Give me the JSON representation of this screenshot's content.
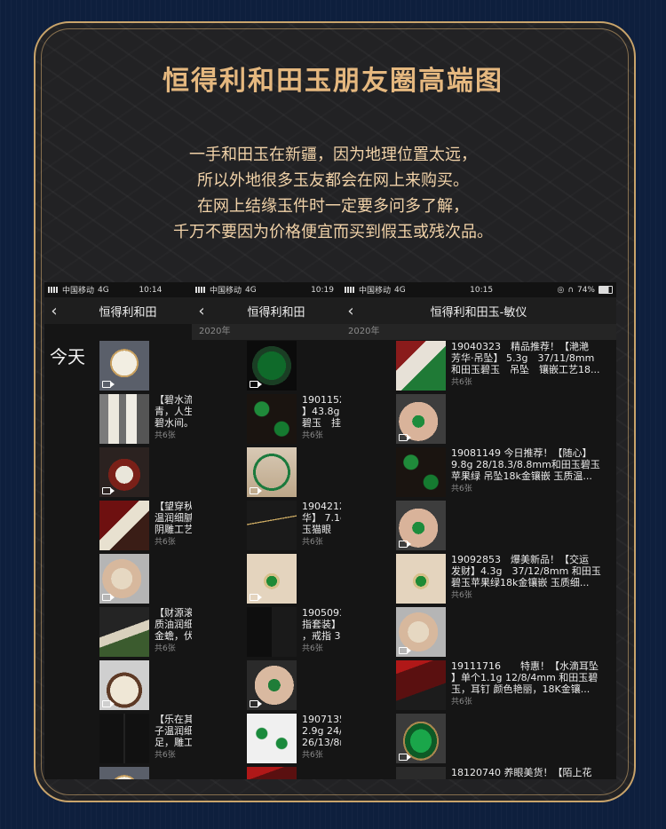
{
  "title": "恒得利和田玉朋友圈高端图",
  "intro": [
    "一手和田玉在新疆，因为地理位置太远，",
    "所以外地很多玉友都会在网上来购买。",
    "在网上结缘玉件时一定要多问多了解，",
    "千万不要因为价格便宜而买到假玉或残次品。"
  ],
  "phones": [
    {
      "carrier": "中国移动",
      "network": "4G",
      "time": "10:14",
      "nav_title": "恒得利和田",
      "today": "今天",
      "posts": [
        {
          "lines": [
            "【碧水流",
            "青，人生",
            "碧水间。"
          ],
          "count": "共6张"
        },
        {
          "lines": [
            "【望穿秋",
            "温润细腻",
            "阴雕工艺"
          ],
          "count": "共6张"
        },
        {
          "lines": [
            "【财源滚",
            "质油润细",
            "金蟾，伏"
          ],
          "count": "共6张"
        },
        {
          "lines": [
            "【乐在其",
            "子温润细",
            "足，雕工"
          ],
          "count": "共6张"
        }
      ]
    },
    {
      "carrier": "中国移动",
      "network": "4G",
      "time": "10:19",
      "nav_title": "恒得利和田",
      "year": "2020年",
      "posts": [
        {
          "lines": [
            "19011529",
            "】43.8g",
            "碧玉　挂"
          ],
          "count": "共6张"
        },
        {
          "lines": [
            "1904212",
            "华】 7.1g",
            "玉猫眼"
          ],
          "count": "共6张"
        },
        {
          "lines": [
            "1905093",
            "指套装】",
            "，戒指 3"
          ],
          "count": "共6张"
        },
        {
          "lines": [
            "1907135",
            "2.9g 24/",
            "26/13/8m"
          ],
          "count": "共6张"
        }
      ]
    },
    {
      "carrier": "中国移动",
      "network": "4G",
      "time": "10:15",
      "battery": "74%",
      "nav_title": "恒得利和田玉-敏仪",
      "year": "2020年",
      "posts": [
        {
          "lines": [
            "19040323　精品推荐！【滟滟",
            "芳华·吊坠】 5.3g　37/11/8mm",
            "和田玉碧玉　吊坠　镶嵌工艺18..."
          ],
          "count": "共6张"
        },
        {
          "lines": [
            "19081149 今日推荐！【随心】",
            "9.8g 28/18.3/8.8mm和田玉碧玉",
            "苹果绿 吊坠18k金镶嵌 玉质温..."
          ],
          "count": "共6张"
        },
        {
          "lines": [
            "19092853　爆美新品！【交运",
            "发财】4.3g　37/12/8mm 和田玉",
            "碧玉苹果绿18k金镶嵌 玉质细..."
          ],
          "count": "共6张"
        },
        {
          "lines": [
            "19111716　　特惠！【水滴耳坠",
            "】单个1.1g 12/8/4mm 和田玉碧",
            "玉，耳钉 颜色艳丽，18K金镶..."
          ],
          "count": "共6张"
        },
        {
          "lines": [
            "18120740 养眼美货！【陌上花"
          ],
          "count": ""
        }
      ]
    }
  ]
}
